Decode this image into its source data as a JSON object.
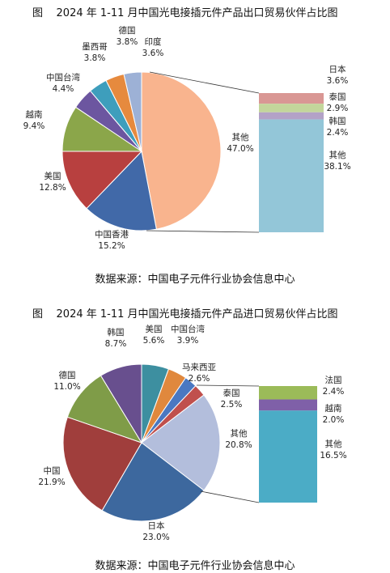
{
  "chart_data": [
    {
      "type": "pie",
      "title": "图    2024 年 1-11 月中国光电接插元件产品出口贸易伙伴占比图",
      "source": "数据来源：中国电子元件行业协会信息中心",
      "slices": [
        {
          "name": "其他",
          "value": 47.0,
          "label": "47.0%",
          "color": "#F9B48E"
        },
        {
          "name": "中国香港",
          "value": 15.2,
          "label": "15.2%",
          "color": "#4169A8"
        },
        {
          "name": "美国",
          "value": 12.8,
          "label": "12.8%",
          "color": "#B8403F"
        },
        {
          "name": "越南",
          "value": 9.4,
          "label": "9.4%",
          "color": "#8BA64A"
        },
        {
          "name": "中国台湾",
          "value": 4.4,
          "label": "4.4%",
          "color": "#6C56A0"
        },
        {
          "name": "墨西哥",
          "value": 3.8,
          "label": "3.8%",
          "color": "#3E9EBC"
        },
        {
          "name": "德国",
          "value": 3.8,
          "label": "3.8%",
          "color": "#E68A3E"
        },
        {
          "name": "印度",
          "value": 3.6,
          "label": "3.6%",
          "color": "#9DB1D6"
        }
      ],
      "breakdown": [
        {
          "name": "日本",
          "value": 3.6,
          "label": "3.6%",
          "color": "#D99794"
        },
        {
          "name": "泰国",
          "value": 2.9,
          "label": "2.9%",
          "color": "#C3D69B"
        },
        {
          "name": "韩国",
          "value": 2.4,
          "label": "2.4%",
          "color": "#B3A2C7"
        },
        {
          "name": "其他",
          "value": 38.1,
          "label": "38.1%",
          "color": "#93C6D8"
        }
      ]
    },
    {
      "type": "pie",
      "title": "图    2024 年 1-11 月中国光电接插元件产品进口贸易伙伴占比图",
      "source": "数据来源：中国电子元件行业协会信息中心",
      "slices": [
        {
          "name": "美国",
          "value": 5.6,
          "label": "5.6%",
          "color": "#3D8FA0"
        },
        {
          "name": "中国台湾",
          "value": 3.9,
          "label": "3.9%",
          "color": "#E0883D"
        },
        {
          "name": "马来西亚",
          "value": 2.6,
          "label": "2.6%",
          "color": "#4A78C2"
        },
        {
          "name": "泰国",
          "value": 2.5,
          "label": "2.5%",
          "color": "#C0504D"
        },
        {
          "name": "其他",
          "value": 20.8,
          "label": "20.8%",
          "color": "#B3BEDC"
        },
        {
          "name": "日本",
          "value": 23.0,
          "label": "23.0%",
          "color": "#3D689E"
        },
        {
          "name": "中国",
          "value": 21.9,
          "label": "21.9%",
          "color": "#A03E3C"
        },
        {
          "name": "德国",
          "value": 11.0,
          "label": "11.0%",
          "color": "#7F9C48"
        },
        {
          "name": "韩国",
          "value": 8.7,
          "label": "8.7%",
          "color": "#684F8E"
        }
      ],
      "breakdown": [
        {
          "name": "法国",
          "value": 2.4,
          "label": "2.4%",
          "color": "#9BBB59"
        },
        {
          "name": "越南",
          "value": 2.0,
          "label": "2.0%",
          "color": "#7F60A8"
        },
        {
          "name": "其他",
          "value": 16.5,
          "label": "16.5%",
          "color": "#4BACC6"
        }
      ]
    }
  ]
}
